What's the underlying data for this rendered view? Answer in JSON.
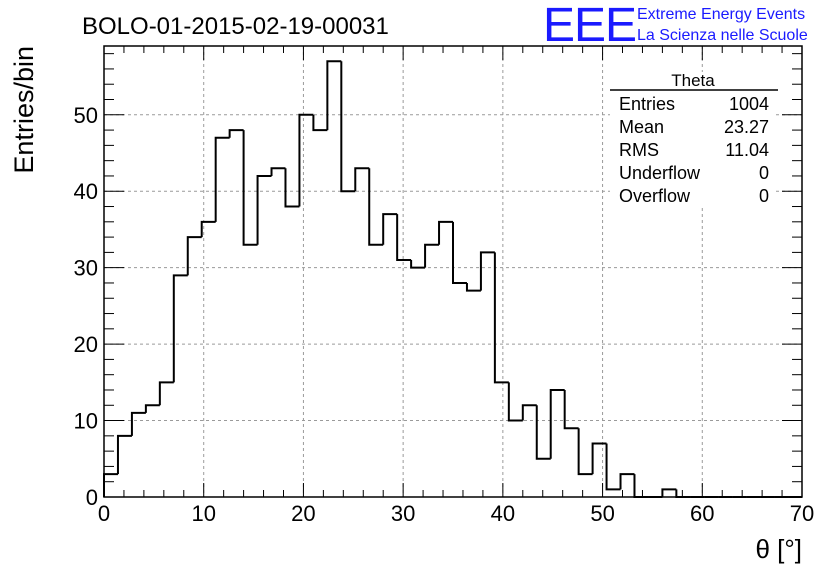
{
  "header": {
    "logo_text": "EEE",
    "logo_line1": "Extreme Energy Events",
    "logo_line2": "La Scienza nelle Scuole"
  },
  "colors": {
    "logo": "#1a1aff",
    "histogram": "#000000",
    "grid": "#9a9a9a",
    "background": "#ffffff"
  },
  "chart_data": {
    "type": "bar",
    "style": "step-histogram",
    "title": "BOLO-01-2015-02-19-00031",
    "xlabel": "θ [°]",
    "ylabel": "Entries/bin",
    "xlim": [
      0,
      70
    ],
    "ylim": [
      0,
      59
    ],
    "grid": true,
    "bin_width": 1.4,
    "bin_edges_start": 0,
    "values": [
      3,
      8,
      11,
      12,
      15,
      29,
      34,
      36,
      47,
      48,
      33,
      42,
      43,
      38,
      50,
      48,
      57,
      40,
      43,
      33,
      37,
      31,
      30,
      33,
      36,
      28,
      27,
      32,
      15,
      10,
      12,
      5,
      14,
      9,
      3,
      7,
      1,
      3,
      0,
      0,
      1,
      0,
      0,
      0,
      0,
      0,
      0,
      0,
      0,
      0
    ],
    "xticks": [
      "0",
      "10",
      "20",
      "30",
      "40",
      "50",
      "60",
      "70"
    ],
    "yticks": [
      "0",
      "10",
      "20",
      "30",
      "40",
      "50"
    ],
    "stats": {
      "title": "Theta",
      "rows": [
        {
          "label": "Entries",
          "value": "1004"
        },
        {
          "label": "Mean",
          "value": "23.27"
        },
        {
          "label": "RMS",
          "value": "11.04"
        },
        {
          "label": "Underflow",
          "value": "0"
        },
        {
          "label": "Overflow",
          "value": "0"
        }
      ]
    }
  }
}
